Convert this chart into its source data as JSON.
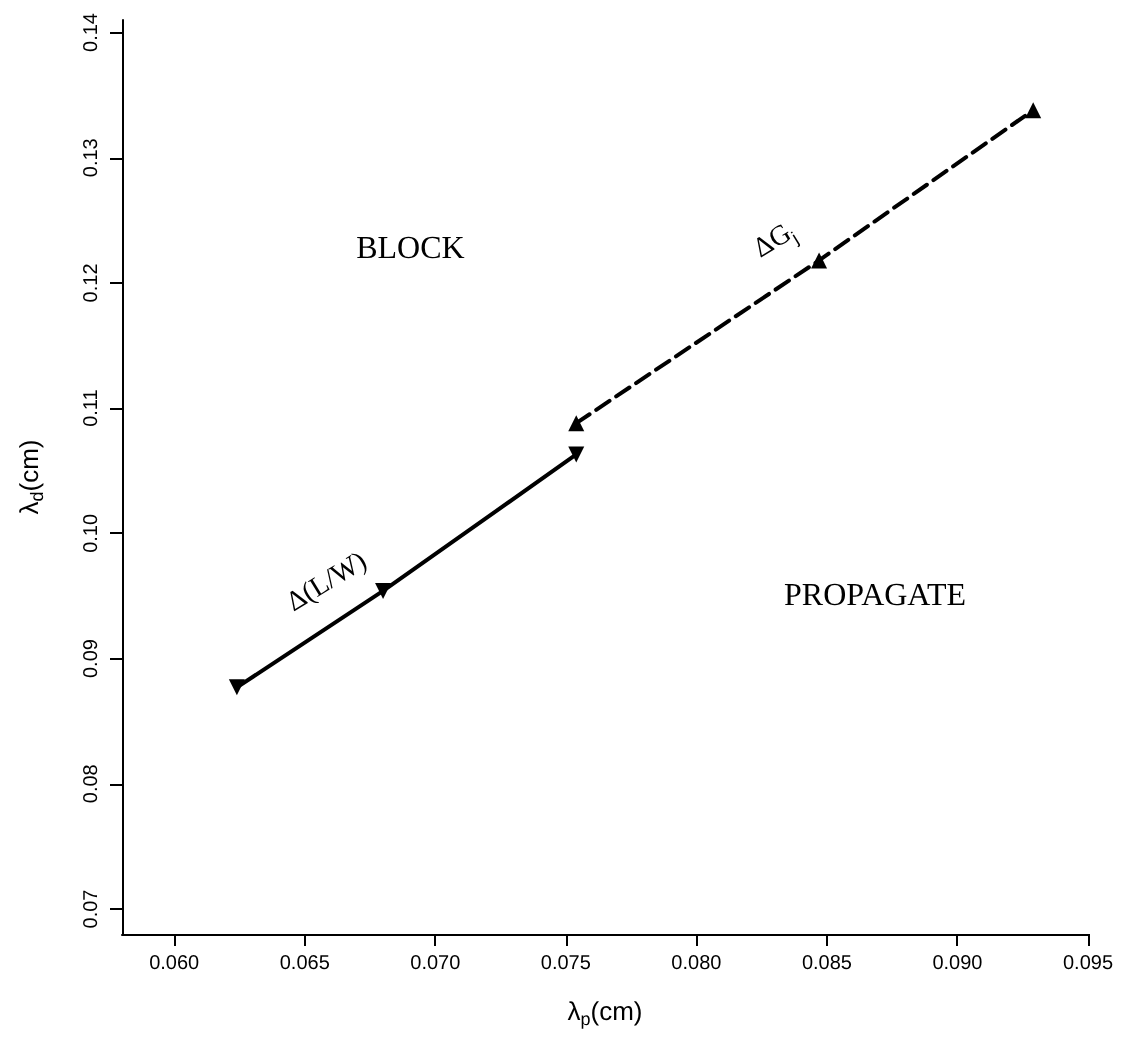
{
  "chart_data": {
    "type": "line",
    "xlabel": "λ$_{p}$(cm)",
    "ylabel": "λ$_{d}$(cm)",
    "xlim": [
      0.058,
      0.095
    ],
    "ylim": [
      0.068,
      0.141
    ],
    "xticks": [
      {
        "value": 0.06,
        "label": "0.060"
      },
      {
        "value": 0.065,
        "label": "0.065"
      },
      {
        "value": 0.07,
        "label": "0.070"
      },
      {
        "value": 0.075,
        "label": "0.075"
      },
      {
        "value": 0.08,
        "label": "0.080"
      },
      {
        "value": 0.085,
        "label": "0.085"
      },
      {
        "value": 0.09,
        "label": "0.090"
      },
      {
        "value": 0.095,
        "label": "0.095"
      }
    ],
    "yticks": [
      0.07,
      0.08,
      0.09,
      {
        "value": 0.1,
        "label": "0.10"
      },
      0.11,
      0.12,
      0.13,
      0.14
    ],
    "grid": false,
    "series": [
      {
        "color": "#000000",
        "x": [
          0.0624,
          0.068,
          0.0754
        ],
        "values": [
          0.0877,
          0.0954,
          0.1063
        ],
        "line_style": "solid",
        "marker": "triangle"
      },
      {
        "color": "#000000",
        "x": [
          0.0754,
          0.0847,
          0.0929
        ],
        "values": [
          0.1088,
          0.1218,
          0.1338
        ],
        "line_style": "dashed",
        "marker": "triangle"
      }
    ],
    "annotations": [
      "BLOCK",
      "PROPAGATE",
      {
        "text": "Δ(L/W)",
        "x": 0.0666,
        "y": 0.0935
      },
      {
        "text": "ΔG$_{j}$",
        "x": 0.0838,
        "y": 0.1206
      }
    ]
  }
}
